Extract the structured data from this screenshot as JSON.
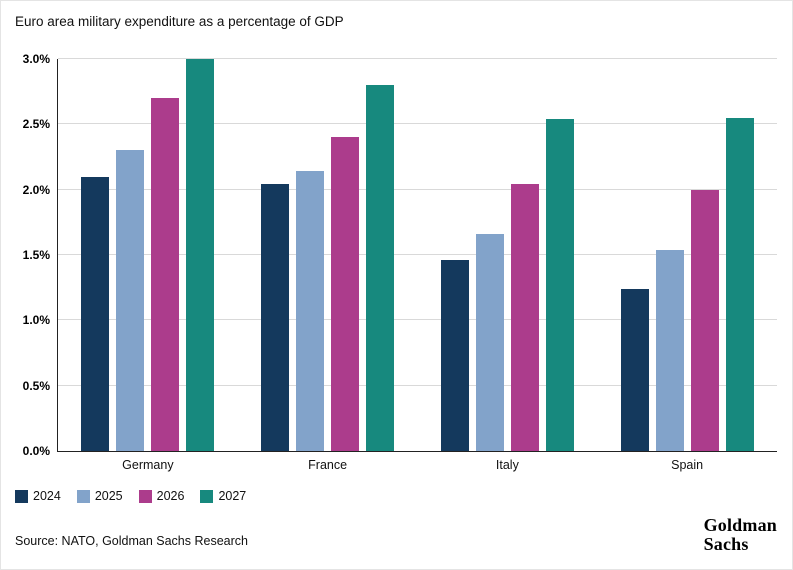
{
  "title": "Euro area military expenditure as a percentage of GDP",
  "source": "Source: NATO, Goldman Sachs Research",
  "logo": {
    "line1": "Goldman",
    "line2": "Sachs"
  },
  "chart_data": {
    "type": "bar",
    "title": "Euro area military expenditure as a percentage of GDP",
    "categories": [
      "Germany",
      "France",
      "Italy",
      "Spain"
    ],
    "series": [
      {
        "name": "2024",
        "color": "#14395d",
        "values": [
          2.1,
          2.04,
          1.46,
          1.24
        ]
      },
      {
        "name": "2025",
        "color": "#82a3ca",
        "values": [
          2.3,
          2.14,
          1.66,
          1.54
        ]
      },
      {
        "name": "2026",
        "color": "#ac3c8c",
        "values": [
          2.7,
          2.4,
          2.04,
          2.0
        ]
      },
      {
        "name": "2027",
        "color": "#17897e",
        "values": [
          3.0,
          2.8,
          2.54,
          2.55
        ]
      }
    ],
    "xlabel": "",
    "ylabel": "",
    "ylim": [
      0,
      3.0
    ],
    "ytick_step": 0.5,
    "ytick_labels": [
      "0.0%",
      "0.5%",
      "1.0%",
      "1.5%",
      "2.0%",
      "2.5%",
      "3.0%"
    ],
    "grid": true,
    "legend_position": "bottom-left"
  }
}
